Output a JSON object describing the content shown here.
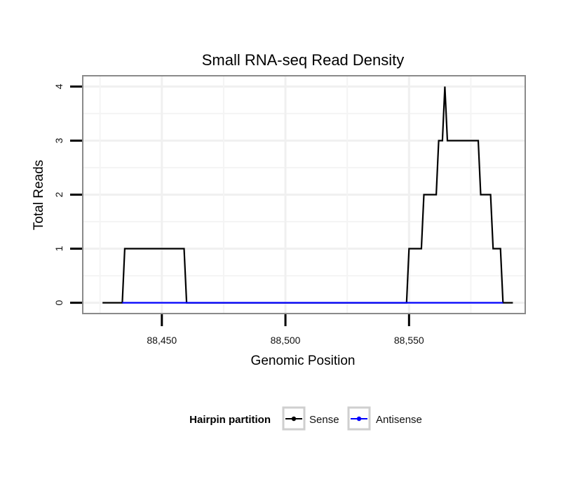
{
  "chart_data": {
    "type": "line",
    "title": "Small RNA-seq Read Density",
    "xlabel": "Genomic Position",
    "ylabel": "Total Reads",
    "xlim": [
      88418,
      88597
    ],
    "ylim": [
      -0.2,
      4.2
    ],
    "xticks": [
      88450,
      88500,
      88550
    ],
    "xtick_labels": [
      "88,450",
      "88,500",
      "88,550"
    ],
    "yticks": [
      0,
      1,
      2,
      3,
      4
    ],
    "ytick_labels": [
      "0",
      "1",
      "2",
      "3",
      "4"
    ],
    "grid": true,
    "legend": {
      "title": "Hairpin partition",
      "position": "bottom",
      "entries": [
        {
          "name": "Sense",
          "color": "#000000"
        },
        {
          "name": "Antisense",
          "color": "#0000ff"
        }
      ]
    },
    "series": [
      {
        "name": "Sense",
        "color": "#000000",
        "x": [
          88426,
          88434,
          88435,
          88459,
          88460,
          88549,
          88550,
          88555,
          88556,
          88561,
          88562,
          88563.5,
          88564.5,
          88565.5,
          88566.5,
          88578,
          88579,
          88583,
          88584,
          88587,
          88588,
          88592
        ],
        "y": [
          0,
          0,
          1,
          1,
          0,
          0,
          1,
          1,
          2,
          2,
          3,
          3,
          4,
          3,
          3,
          3,
          2,
          2,
          1,
          1,
          0,
          0
        ]
      },
      {
        "name": "Antisense",
        "color": "#0000ff",
        "x": [
          88434,
          88460,
          88550,
          88588
        ],
        "y": [
          0,
          0,
          0,
          0
        ]
      }
    ]
  }
}
